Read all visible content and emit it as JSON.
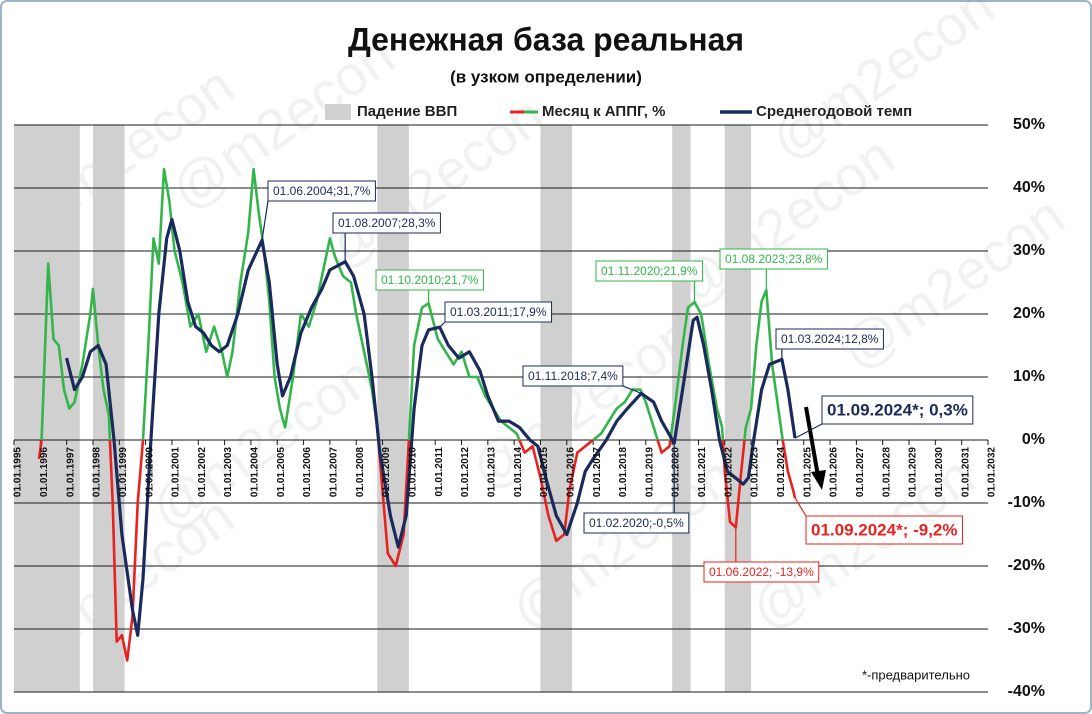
{
  "chart_data": {
    "type": "line",
    "title": "Денежная база реальная",
    "subtitle": "(в узком определении)",
    "footnote": "*-предварительно",
    "watermark": "@m2econ",
    "xlim": [
      1995,
      2032
    ],
    "xticks": [
      {
        "value": 1995,
        "label": "01.01.1995"
      },
      {
        "value": 1996,
        "label": "01.01.1996"
      },
      {
        "value": 1997,
        "label": "01.01.1997"
      },
      {
        "value": 1998,
        "label": "01.01.1998"
      },
      {
        "value": 1999,
        "label": "01.01.1999"
      },
      {
        "value": 2000,
        "label": "01.01.2000"
      },
      {
        "value": 2001,
        "label": "01.01.2001"
      },
      {
        "value": 2002,
        "label": "01.01.2002"
      },
      {
        "value": 2003,
        "label": "01.01.2003"
      },
      {
        "value": 2004,
        "label": "01.01.2004"
      },
      {
        "value": 2005,
        "label": "01.01.2005"
      },
      {
        "value": 2006,
        "label": "01.01.2006"
      },
      {
        "value": 2007,
        "label": "01.01.2007"
      },
      {
        "value": 2008,
        "label": "01.01.2008"
      },
      {
        "value": 2009,
        "label": "01.01.2009"
      },
      {
        "value": 2010,
        "label": "01.01.2010"
      },
      {
        "value": 2011,
        "label": "01.01.2011"
      },
      {
        "value": 2012,
        "label": "01.01.2012"
      },
      {
        "value": 2013,
        "label": "01.01.2013"
      },
      {
        "value": 2014,
        "label": "01.01.2014"
      },
      {
        "value": 2015,
        "label": "01.01.2015"
      },
      {
        "value": 2016,
        "label": "01.01.2016"
      },
      {
        "value": 2017,
        "label": "01.01.2017"
      },
      {
        "value": 2018,
        "label": "01.01.2018"
      },
      {
        "value": 2019,
        "label": "01.01.2019"
      },
      {
        "value": 2020,
        "label": "01.01.2020"
      },
      {
        "value": 2021,
        "label": "01.01.2021"
      },
      {
        "value": 2022,
        "label": "01.01.2022"
      },
      {
        "value": 2023,
        "label": "01.01.2023"
      },
      {
        "value": 2024,
        "label": "01.01.2024"
      },
      {
        "value": 2025,
        "label": "01.01.2025"
      },
      {
        "value": 2026,
        "label": "01.01.2026"
      },
      {
        "value": 2027,
        "label": "01.01.2027"
      },
      {
        "value": 2028,
        "label": "01.01.2028"
      },
      {
        "value": 2029,
        "label": "01.01.2029"
      },
      {
        "value": 2030,
        "label": "01.01.2030"
      },
      {
        "value": 2031,
        "label": "01.01.2031"
      },
      {
        "value": 2032,
        "label": "01.01.2032"
      }
    ],
    "ylim": [
      -40,
      50
    ],
    "yticks": [
      {
        "value": 50,
        "label": "50%"
      },
      {
        "value": 40,
        "label": "40%"
      },
      {
        "value": 30,
        "label": "30%"
      },
      {
        "value": 20,
        "label": "20%"
      },
      {
        "value": 10,
        "label": "10%"
      },
      {
        "value": 0,
        "label": "0%"
      },
      {
        "value": -10,
        "label": "-10%"
      },
      {
        "value": -20,
        "label": "-20%"
      },
      {
        "value": -30,
        "label": "-30%"
      },
      {
        "value": -40,
        "label": "-40%"
      }
    ],
    "grid": true,
    "recessions": {
      "name": "Падение ВВП",
      "color": "#d0d0d0",
      "ranges": [
        [
          1995,
          1997.5
        ],
        [
          1998,
          1999.2
        ],
        [
          2008.8,
          2010
        ],
        [
          2015,
          2016.2
        ],
        [
          2020,
          2020.7
        ],
        [
          2022,
          2023
        ]
      ]
    },
    "series": [
      {
        "name": "Месяц к АППГ, %",
        "color": "#33b54b",
        "negative_color": "#e8221e",
        "x": [
          1995.95,
          1996.05,
          1996.3,
          1996.5,
          1996.7,
          1996.9,
          1997.1,
          1997.3,
          1997.6,
          1997.9,
          1998.0,
          1998.2,
          1998.4,
          1998.6,
          1998.75,
          1998.9,
          1999.1,
          1999.3,
          1999.5,
          1999.7,
          1999.9,
          2000.1,
          2000.3,
          2000.5,
          2000.7,
          2000.9,
          2001.1,
          2001.4,
          2001.7,
          2002.0,
          2002.3,
          2002.6,
          2002.9,
          2003.1,
          2003.3,
          2003.6,
          2003.9,
          2004.1,
          2004.3,
          2004.5,
          2004.7,
          2004.9,
          2005.1,
          2005.3,
          2005.6,
          2005.9,
          2006.2,
          2006.5,
          2006.8,
          2007.0,
          2007.2,
          2007.5,
          2007.8,
          2008.0,
          2008.3,
          2008.6,
          2008.8,
          2009.0,
          2009.2,
          2009.5,
          2009.8,
          2010.0,
          2010.2,
          2010.5,
          2010.75,
          2011.1,
          2011.4,
          2011.7,
          2012.0,
          2012.3,
          2012.6,
          2012.9,
          2013.2,
          2013.5,
          2013.8,
          2014.1,
          2014.4,
          2014.7,
          2015.0,
          2015.3,
          2015.6,
          2015.9,
          2016.1,
          2016.4,
          2016.7,
          2017.0,
          2017.3,
          2017.6,
          2017.9,
          2018.2,
          2018.5,
          2018.8,
          2019.0,
          2019.3,
          2019.6,
          2019.9,
          2020.1,
          2020.4,
          2020.6,
          2020.85,
          2021.1,
          2021.4,
          2021.7,
          2021.9,
          2022.0,
          2022.2,
          2022.42,
          2022.6,
          2022.8,
          2023.0,
          2023.2,
          2023.4,
          2023.58,
          2023.8,
          2024.0,
          2024.2,
          2024.4,
          2024.6,
          2024.67
        ],
        "values": [
          -3,
          0,
          28,
          16,
          15,
          8,
          5,
          6,
          12,
          20,
          24,
          15,
          8,
          4,
          -10,
          -32,
          -31,
          -35,
          -28,
          -10,
          0,
          15,
          32,
          28,
          43,
          38,
          30,
          25,
          18,
          20,
          14,
          18,
          14,
          10,
          14,
          25,
          33,
          43,
          36,
          30,
          22,
          10,
          5,
          2,
          10,
          20,
          18,
          22,
          28,
          32,
          29,
          26,
          25,
          20,
          14,
          8,
          2,
          -8,
          -18,
          -20,
          -15,
          0,
          15,
          21,
          21.7,
          16,
          14,
          12,
          14,
          10,
          10,
          7,
          5,
          3,
          2,
          1,
          -2,
          -1,
          -6,
          -12,
          -16,
          -15,
          -8,
          -2,
          -1,
          0,
          1,
          3,
          5,
          6,
          8,
          8,
          6,
          2,
          -2,
          -1,
          5,
          15,
          21,
          21.9,
          20,
          12,
          5,
          2,
          -5,
          -13,
          -13.9,
          -6,
          2,
          5,
          15,
          22,
          23.8,
          12,
          6,
          0,
          -5,
          -8,
          -9.2
        ]
      },
      {
        "name": "Среднегодовой темп",
        "color": "#1b2a5c",
        "x": [
          1997.0,
          1997.3,
          1997.6,
          1997.9,
          1998.2,
          1998.5,
          1998.8,
          1999.1,
          1999.5,
          1999.7,
          1999.9,
          2000.2,
          2000.5,
          2000.8,
          2001.0,
          2001.3,
          2001.6,
          2001.9,
          2002.2,
          2002.5,
          2002.8,
          2003.1,
          2003.5,
          2003.9,
          2004.42,
          2004.7,
          2005.0,
          2005.2,
          2005.5,
          2005.9,
          2006.3,
          2006.7,
          2007.0,
          2007.58,
          2007.9,
          2008.3,
          2008.6,
          2008.9,
          2009.3,
          2009.6,
          2009.9,
          2010.2,
          2010.5,
          2010.75,
          2011.17,
          2011.5,
          2011.9,
          2012.3,
          2012.7,
          2013.0,
          2013.4,
          2013.8,
          2014.2,
          2014.6,
          2014.9,
          2015.2,
          2015.6,
          2016.0,
          2016.4,
          2016.7,
          2017.0,
          2017.5,
          2017.9,
          2018.3,
          2018.83,
          2019.3,
          2019.6,
          2020.08,
          2020.4,
          2020.8,
          2020.95,
          2021.2,
          2021.5,
          2021.8,
          2022.1,
          2022.4,
          2022.7,
          2022.9,
          2023.1,
          2023.4,
          2023.7,
          2024.17,
          2024.4,
          2024.67
        ],
        "values": [
          13,
          8,
          10,
          14,
          15,
          12,
          0,
          -15,
          -27,
          -31,
          -22,
          0,
          20,
          32,
          35,
          30,
          22,
          18,
          17,
          15,
          14,
          15,
          20,
          27,
          31.7,
          25,
          12,
          7,
          10,
          17,
          21,
          24,
          27,
          28.3,
          26,
          20,
          10,
          -2,
          -12,
          -17,
          -12,
          5,
          15,
          17.5,
          17.9,
          15,
          13,
          14,
          11,
          7,
          3,
          3,
          2,
          0,
          -1,
          -6,
          -12,
          -15,
          -10,
          -5,
          -3,
          0,
          3,
          5,
          7.4,
          6,
          3,
          -0.5,
          8,
          19,
          19.5,
          15,
          8,
          0,
          -5,
          -6,
          -7,
          -6,
          0,
          8,
          12,
          12.8,
          8,
          0.3
        ]
      }
    ],
    "annotations": [
      {
        "label": "01.06.2004;31,7%",
        "x": 2004.42,
        "y": 31.7,
        "color": "#1b2a5c"
      },
      {
        "label": "01.08.2007;28,3%",
        "x": 2007.58,
        "y": 28.3,
        "color": "#1b2a5c"
      },
      {
        "label": "01.10.2010;21,7%",
        "x": 2010.75,
        "y": 21.7,
        "color": "#33b54b"
      },
      {
        "label": "01.03.2011;17,9%",
        "x": 2011.17,
        "y": 17.9,
        "color": "#1b2a5c"
      },
      {
        "label": "01.11.2018;7,4%",
        "x": 2018.83,
        "y": 7.4,
        "color": "#1b2a5c"
      },
      {
        "label": "01.02.2020;-0,5%",
        "x": 2020.08,
        "y": -0.5,
        "color": "#1b2a5c"
      },
      {
        "label": "01.11.2020;21,9%",
        "x": 2020.85,
        "y": 21.9,
        "color": "#33b54b"
      },
      {
        "label": "01.08.2023;23,8%",
        "x": 2023.58,
        "y": 23.8,
        "color": "#33b54b"
      },
      {
        "label": "01.03.2024;12,8%",
        "x": 2024.17,
        "y": 12.8,
        "color": "#1b2a5c"
      },
      {
        "label": "01.06.2022; -13,9%",
        "x": 2022.42,
        "y": -13.9,
        "color": "#e8221e"
      },
      {
        "label": "01.09.2024*; 0,3%",
        "x": 2024.67,
        "y": 0.3,
        "color": "#1b2a5c"
      },
      {
        "label": "01.09.2024*; -9,2%",
        "x": 2024.67,
        "y": -9.2,
        "color": "#e8221e"
      }
    ]
  }
}
